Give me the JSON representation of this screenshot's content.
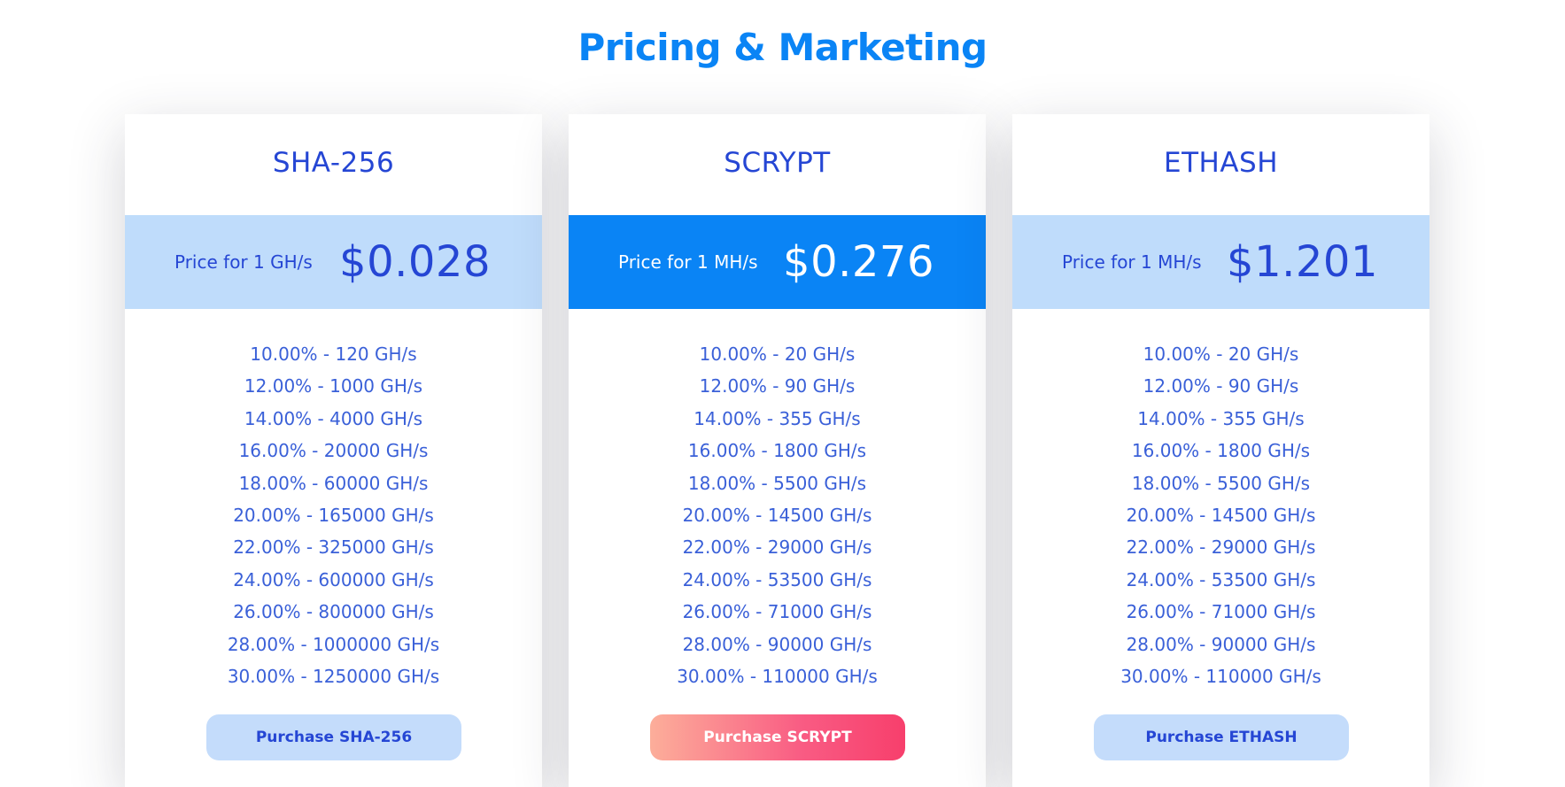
{
  "page": {
    "title": "Pricing & Marketing"
  },
  "colors": {
    "title_blue": "#0a84f5",
    "text_blue": "#2546d4",
    "light_band": "#bfdcfb",
    "featured_band": "#0a84f5",
    "featured_button_start": "#fcae9a",
    "featured_button_end": "#f73f6c"
  },
  "plans": [
    {
      "name": "SHA-256",
      "price_label": "Price for 1 GH/s",
      "price": "$0.028",
      "featured": false,
      "tiers": [
        "10.00% - 120 GH/s",
        "12.00% - 1000 GH/s",
        "14.00% - 4000 GH/s",
        "16.00% - 20000 GH/s",
        "18.00% - 60000 GH/s",
        "20.00% - 165000 GH/s",
        "22.00% - 325000 GH/s",
        "24.00% - 600000 GH/s",
        "26.00% - 800000 GH/s",
        "28.00% - 1000000 GH/s",
        "30.00% - 1250000 GH/s"
      ],
      "button_label": "Purchase SHA-256"
    },
    {
      "name": "SCRYPT",
      "price_label": "Price for 1 MH/s",
      "price": "$0.276",
      "featured": true,
      "tiers": [
        "10.00% - 20 GH/s",
        "12.00% - 90 GH/s",
        "14.00% - 355 GH/s",
        "16.00% - 1800 GH/s",
        "18.00% - 5500 GH/s",
        "20.00% - 14500 GH/s",
        "22.00% - 29000 GH/s",
        "24.00% - 53500 GH/s",
        "26.00% - 71000 GH/s",
        "28.00% - 90000 GH/s",
        "30.00% - 110000 GH/s"
      ],
      "button_label": "Purchase SCRYPT"
    },
    {
      "name": "ETHASH",
      "price_label": "Price for 1 MH/s",
      "price": "$1.201",
      "featured": false,
      "tiers": [
        "10.00% - 20 GH/s",
        "12.00% - 90 GH/s",
        "14.00% - 355 GH/s",
        "16.00% - 1800 GH/s",
        "18.00% - 5500 GH/s",
        "20.00% - 14500 GH/s",
        "22.00% - 29000 GH/s",
        "24.00% - 53500 GH/s",
        "26.00% - 71000 GH/s",
        "28.00% - 90000 GH/s",
        "30.00% - 110000 GH/s"
      ],
      "button_label": "Purchase ETHASH"
    }
  ]
}
